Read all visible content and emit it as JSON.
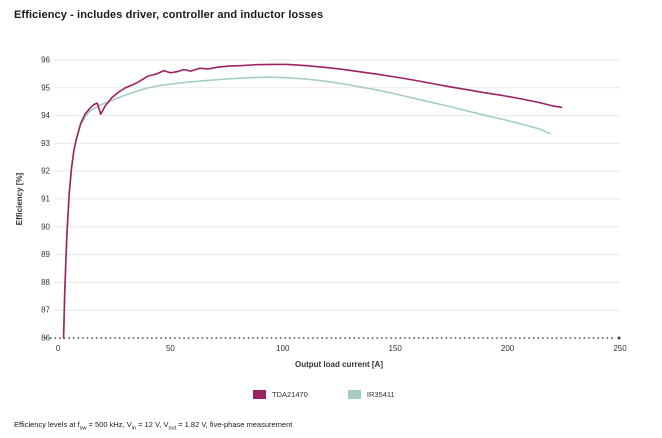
{
  "chart_data": {
    "type": "line",
    "title": "Efficiency - includes driver, controller and inductor losses",
    "xlabel": "Output load current [A]",
    "ylabel": "Efficiency [%]",
    "xlim": [
      0,
      250
    ],
    "ylim": [
      86,
      96
    ],
    "xticks": [
      0,
      50,
      100,
      150,
      200,
      250
    ],
    "yticks": [
      86,
      87,
      88,
      89,
      90,
      91,
      92,
      93,
      94,
      95,
      96
    ],
    "grid": true,
    "legend_position": "bottom",
    "colors": {
      "gridline": "#e8e8e8",
      "baseline_dots": "#3a3a3a",
      "tick_text": "#333333"
    },
    "series": [
      {
        "name": "TDA21470",
        "color": "#9d2263",
        "points": [
          [
            2.5,
            86.0
          ],
          [
            3,
            87.6
          ],
          [
            3.5,
            88.8
          ],
          [
            4,
            89.8
          ],
          [
            5,
            91.2
          ],
          [
            6,
            92.1
          ],
          [
            7,
            92.7
          ],
          [
            8,
            93.1
          ],
          [
            10,
            93.7
          ],
          [
            12,
            94.05
          ],
          [
            14,
            94.25
          ],
          [
            16,
            94.4
          ],
          [
            17.5,
            94.45
          ],
          [
            19,
            94.05
          ],
          [
            21,
            94.35
          ],
          [
            24,
            94.65
          ],
          [
            27,
            94.85
          ],
          [
            30,
            95.0
          ],
          [
            33,
            95.1
          ],
          [
            36,
            95.22
          ],
          [
            40,
            95.42
          ],
          [
            44,
            95.5
          ],
          [
            47,
            95.62
          ],
          [
            50,
            95.54
          ],
          [
            53,
            95.58
          ],
          [
            56,
            95.66
          ],
          [
            59,
            95.6
          ],
          [
            63,
            95.7
          ],
          [
            67,
            95.68
          ],
          [
            71,
            95.74
          ],
          [
            76,
            95.78
          ],
          [
            82,
            95.8
          ],
          [
            88,
            95.83
          ],
          [
            95,
            95.84
          ],
          [
            102,
            95.84
          ],
          [
            110,
            95.8
          ],
          [
            118,
            95.74
          ],
          [
            126,
            95.67
          ],
          [
            134,
            95.58
          ],
          [
            142,
            95.49
          ],
          [
            150,
            95.39
          ],
          [
            158,
            95.28
          ],
          [
            166,
            95.16
          ],
          [
            174,
            95.04
          ],
          [
            182,
            94.93
          ],
          [
            190,
            94.82
          ],
          [
            198,
            94.72
          ],
          [
            206,
            94.6
          ],
          [
            214,
            94.47
          ],
          [
            220,
            94.35
          ],
          [
            224,
            94.3
          ]
        ]
      },
      {
        "name": "IR35411",
        "color": "#a5cdc2",
        "points": [
          [
            2.5,
            86.0
          ],
          [
            3,
            87.6
          ],
          [
            3.5,
            88.8
          ],
          [
            4,
            89.8
          ],
          [
            5,
            91.2
          ],
          [
            6,
            92.1
          ],
          [
            7,
            92.7
          ],
          [
            8,
            93.1
          ],
          [
            10,
            93.65
          ],
          [
            12,
            93.95
          ],
          [
            14,
            94.15
          ],
          [
            17,
            94.3
          ],
          [
            20,
            94.42
          ],
          [
            24,
            94.55
          ],
          [
            28,
            94.68
          ],
          [
            32,
            94.8
          ],
          [
            36,
            94.9
          ],
          [
            40,
            95.0
          ],
          [
            45,
            95.08
          ],
          [
            50,
            95.13
          ],
          [
            55,
            95.18
          ],
          [
            60,
            95.22
          ],
          [
            66,
            95.26
          ],
          [
            72,
            95.3
          ],
          [
            80,
            95.34
          ],
          [
            88,
            95.37
          ],
          [
            95,
            95.38
          ],
          [
            102,
            95.36
          ],
          [
            110,
            95.32
          ],
          [
            118,
            95.25
          ],
          [
            126,
            95.15
          ],
          [
            134,
            95.04
          ],
          [
            142,
            94.92
          ],
          [
            150,
            94.78
          ],
          [
            158,
            94.63
          ],
          [
            166,
            94.48
          ],
          [
            174,
            94.33
          ],
          [
            182,
            94.17
          ],
          [
            190,
            94.01
          ],
          [
            198,
            93.86
          ],
          [
            206,
            93.7
          ],
          [
            214,
            93.52
          ],
          [
            219,
            93.35
          ]
        ]
      }
    ]
  },
  "footer": {
    "parts": [
      {
        "text": "Efficiency levels at f"
      },
      {
        "sub": "sw"
      },
      {
        "text": " = 500 kHz, V"
      },
      {
        "sub": "in"
      },
      {
        "text": " = 12 V, V"
      },
      {
        "sub": "out"
      },
      {
        "text": " = 1.82 V, five-phase measurement"
      }
    ]
  }
}
